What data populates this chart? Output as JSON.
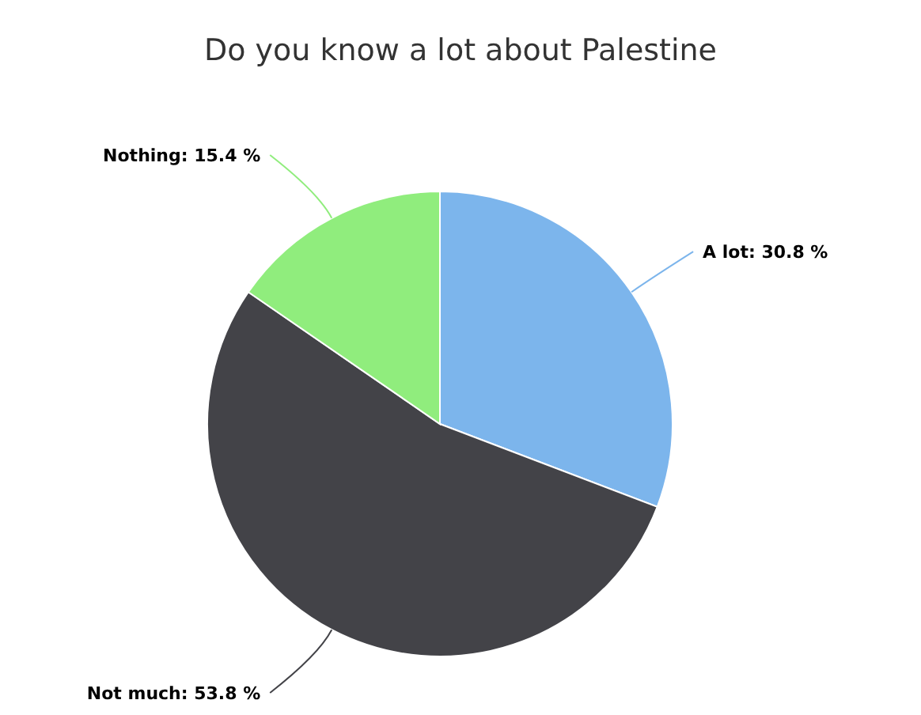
{
  "chart_data": {
    "type": "pie",
    "title": "Do you know a lot about Palestine",
    "categories": [
      "A lot",
      "Not much",
      "Nothing"
    ],
    "values": [
      30.8,
      53.8,
      15.4
    ],
    "colors": [
      "#7cb5ec",
      "#434348",
      "#90ed7d"
    ],
    "value_labels": [
      "30.8 %",
      "53.8 %",
      "15.4 %"
    ]
  }
}
